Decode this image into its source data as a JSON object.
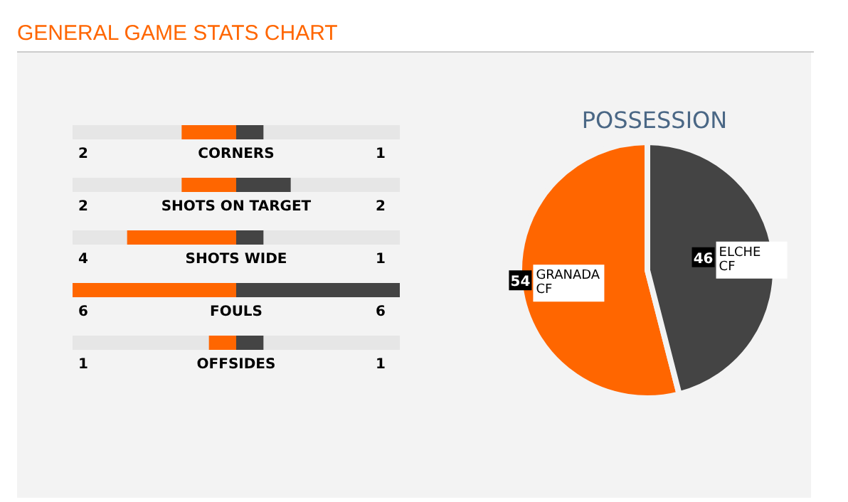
{
  "chart_data": [
    {
      "type": "bar",
      "title": "GENERAL GAME STATS CHART",
      "orientation": "horizontal",
      "categories": [
        "CORNERS",
        "SHOTS ON TARGET",
        "SHOTS WIDE",
        "FOULS",
        "OFFSIDES"
      ],
      "series": [
        {
          "color": "#ff6600",
          "values": [
            2,
            2,
            4,
            6,
            1
          ]
        }
      ],
      "data_labels": true
    },
    {
      "type": "bar",
      "orientation": "horizontal",
      "categories": [
        null,
        null,
        null,
        null,
        null
      ],
      "series": [
        {
          "color": "#444444",
          "values": [
            1,
            2,
            1,
            6,
            1
          ]
        }
      ],
      "data_labels": true
    },
    {
      "type": "pie",
      "title": "POSSESSION",
      "categories": [
        "GRANADA CF",
        "ELCHE CF"
      ],
      "values": [
        54,
        46
      ],
      "colors": [
        "#ff6600",
        "#444444"
      ],
      "data_labels": true
    }
  ]
}
